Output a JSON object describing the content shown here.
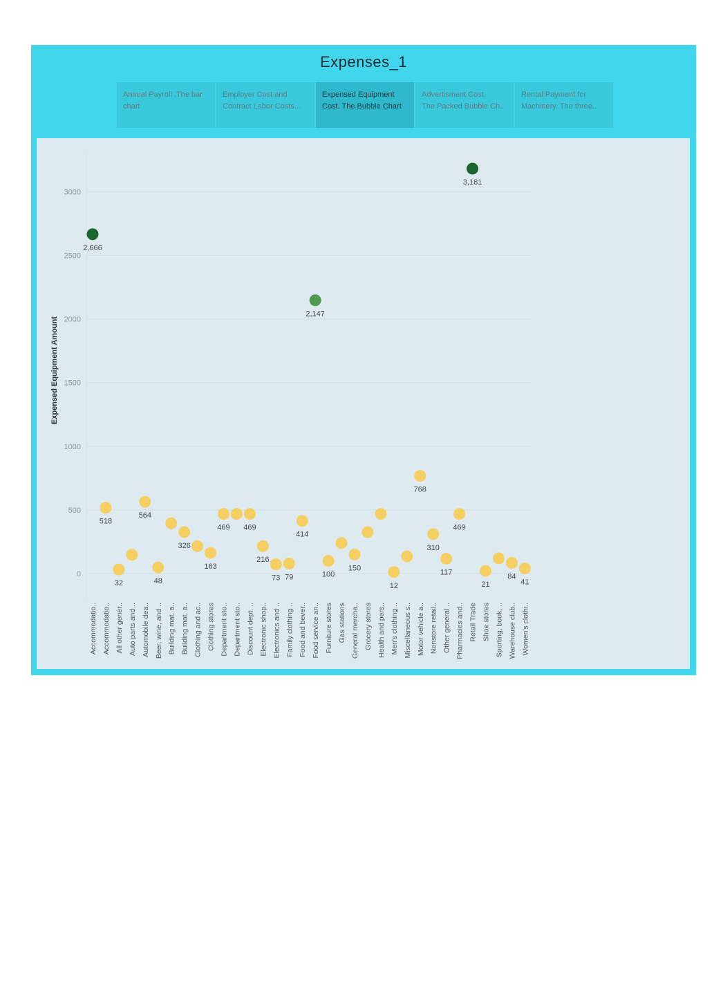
{
  "dashboard": {
    "title": "Expenses_1",
    "tabs": [
      {
        "line1": "Annual Payroll .The bar",
        "line2": "chart",
        "active": false
      },
      {
        "line1": "Employer Cost and",
        "line2": "Contract Labor Costs...",
        "active": false
      },
      {
        "line1": "Expensed Equipment",
        "line2": "Cost. The Bubble Chart",
        "active": true
      },
      {
        "line1": "Advertisment Cost.",
        "line2": "The Packed Bubble Ch..",
        "active": false
      },
      {
        "line1": "Rental Payment for",
        "line2": "Machinery. The three..",
        "active": false
      }
    ]
  },
  "chart_data": {
    "type": "scatter",
    "title": "",
    "xlabel": "",
    "ylabel": "Expensed Equipment Amount",
    "ylim": [
      -200,
      3300
    ],
    "yticks": [
      0,
      500,
      1000,
      1500,
      2000,
      2500,
      3000
    ],
    "grid": true,
    "colors": {
      "low": "#f6cf62",
      "mid": "#4e9a52",
      "high": "#1a6530"
    },
    "categories": [
      "Accommodatio..",
      "Accommodatio..",
      "All other gener..",
      "Auto parts and ..",
      "Automobile dea..",
      "Beer, wine, and ..",
      "Building mat. a..",
      "Building mat. a..",
      "Clothing and ac..",
      "Clothing stores",
      "Department sto..",
      "Department sto..",
      "Discount dept. ..",
      "Electronic shop..",
      "Electronics and ..",
      "Family clothing ..",
      "Food and bever..",
      "Food service an..",
      "Furniture stores",
      "Gas stations",
      "General mercha..",
      "Grocery stores",
      "Health and pers..",
      "Men's clothing ..",
      "Miscellaneous s..",
      "Motor vehicle a..",
      "Nonstore retail..",
      "Other general ..",
      "Pharmacies and..",
      "Retail Trade",
      "Shoe stores",
      "Sporting, book, ..",
      "Warehouse club..",
      "Women's clothi.."
    ],
    "values": [
      2666,
      518,
      32,
      148,
      564,
      48,
      395,
      326,
      216,
      163,
      469,
      469,
      469,
      216,
      73,
      79,
      414,
      2147,
      100,
      240,
      150,
      326,
      469,
      12,
      135,
      768,
      310,
      117,
      469,
      3181,
      21,
      120,
      84,
      41
    ],
    "labels": [
      "2,666",
      "518",
      "32",
      "",
      "564",
      "48",
      "",
      "326",
      "",
      "163",
      "469",
      "",
      "469",
      "216",
      "73",
      "79",
      "414",
      "2,147",
      "100",
      "",
      "150",
      "",
      "",
      "12",
      "",
      "768",
      "310",
      "117",
      "469",
      "3,181",
      "21",
      "",
      "84",
      "41"
    ]
  }
}
